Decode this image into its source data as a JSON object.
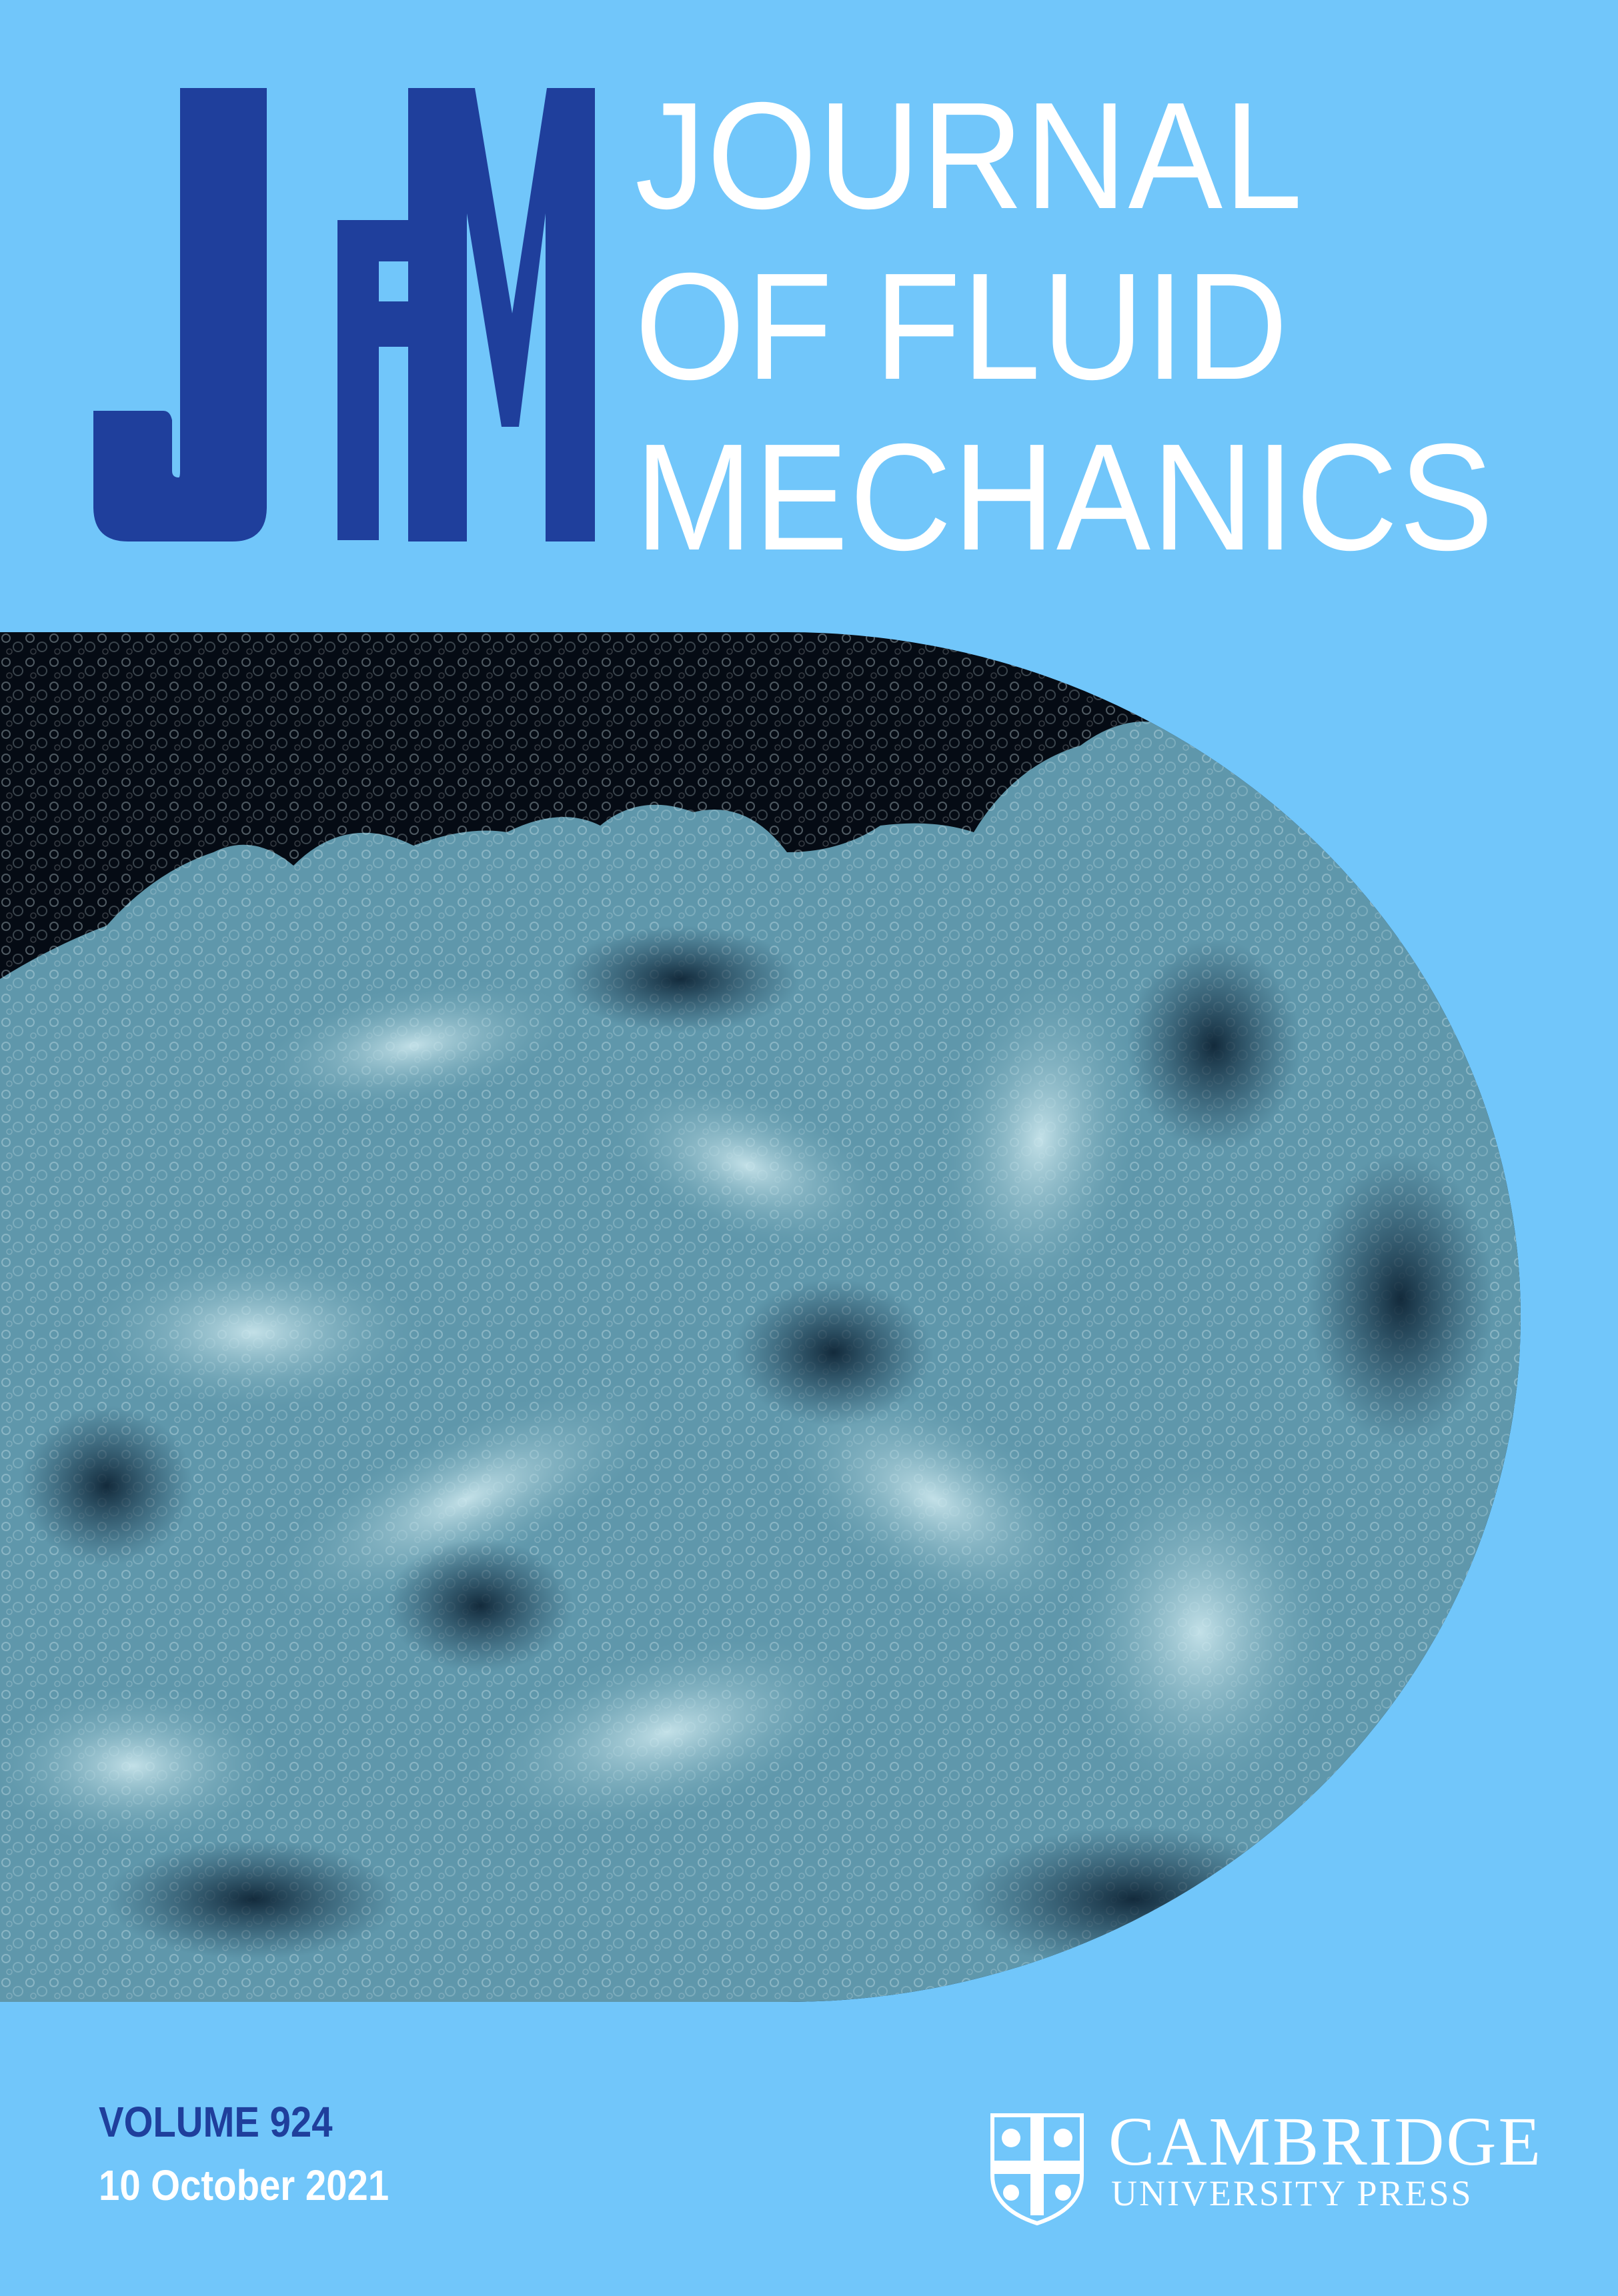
{
  "journal": {
    "logo_text": "JFM",
    "title_lines": [
      "JOURNAL",
      "OF FLUID",
      "MECHANICS"
    ]
  },
  "issue": {
    "volume": "VOLUME 924",
    "date": "10 October 2021"
  },
  "publisher": {
    "name": "CAMBRIDGE",
    "subtitle": "UNIVERSITY PRESS"
  },
  "colors": {
    "background": "#71c6fa",
    "logo_blue": "#1f3f9c",
    "image_dark": "#050b14",
    "foam_light": "#b9dde4"
  },
  "icons": {
    "publisher_crest": "cambridge-shield-icon"
  }
}
